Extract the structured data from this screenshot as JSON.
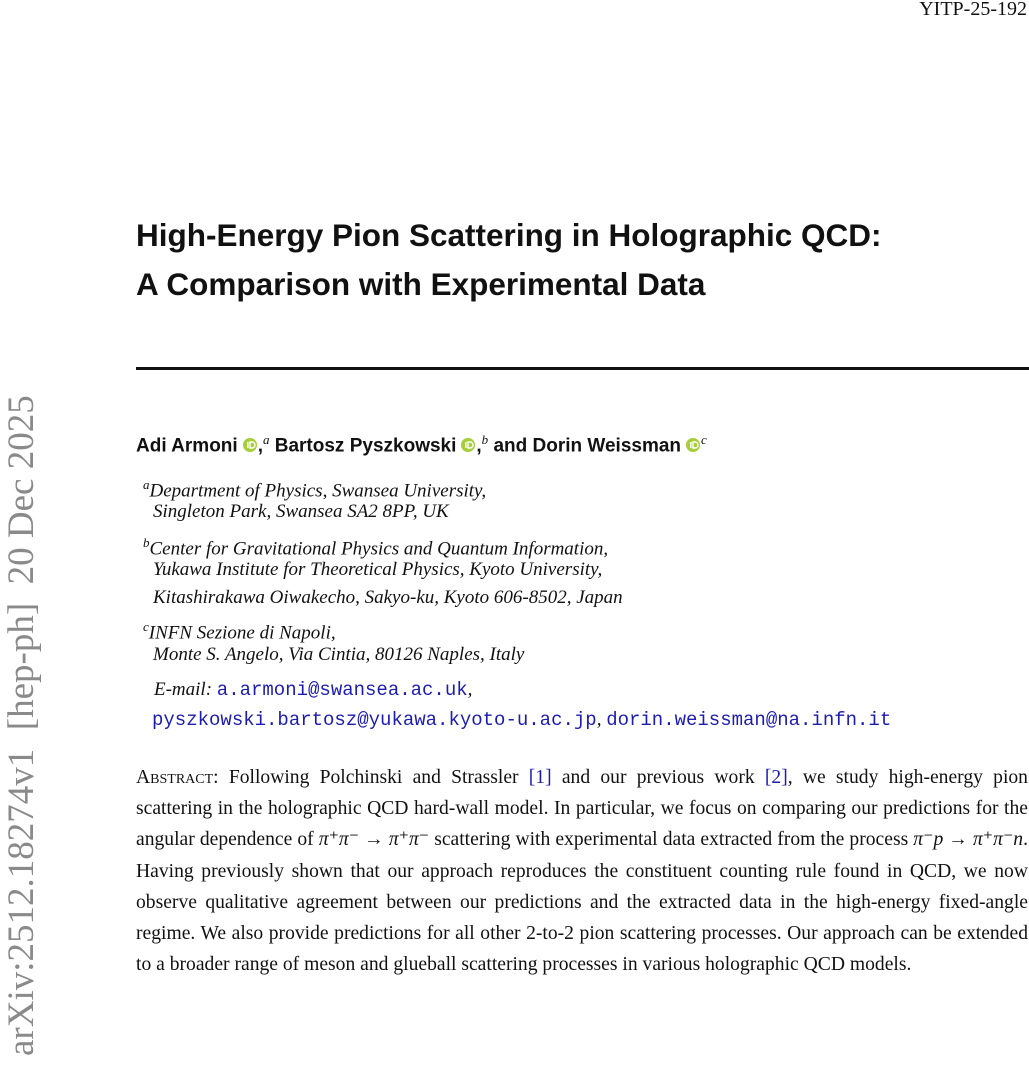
{
  "report_number": "YITP-25-192",
  "arxiv_id": "arXiv:2512.18274v1  [hep-ph]  20 Dec 2025",
  "title": [
    "High-Energy Pion Scattering in Holographic QCD:",
    "A Comparison with Experimental Data"
  ],
  "authors": [
    {
      "name": "Adi Armoni",
      "punct": ",",
      "mark": "a"
    },
    {
      "name": "Bartosz Pyszkowski",
      "punct": ",",
      "mark": "b"
    },
    {
      "name": "Dorin Weissman",
      "mark": "c"
    }
  ],
  "author_conjunction": "and",
  "affiliations": [
    {
      "mark": "a",
      "lines": [
        "Department of Physics, Swansea University,",
        "Singleton Park, Swansea SA2 8PP, UK"
      ]
    },
    {
      "mark": "b",
      "lines": [
        "Center for Gravitational Physics and Quantum Information,",
        "Yukawa Institute for Theoretical Physics, Kyoto University,",
        "Kitashirakawa Oiwakecho, Sakyo-ku, Kyoto 606-8502, Japan"
      ]
    },
    {
      "mark": "c",
      "lines": [
        "INFN Sezione di Napoli,",
        "Monte S. Angelo, Via Cintia, 80126 Naples, Italy"
      ]
    }
  ],
  "email": {
    "label": "E-mail:",
    "separator": ",",
    "addresses": [
      "a.armoni@swansea.ac.uk",
      "pyszkowski.bartosz@yukawa.kyoto-u.ac.jp",
      "dorin.weissman@na.infn.it"
    ]
  },
  "abstract": {
    "label": "Abstract:",
    "segments": [
      {
        "text": "Following Polchinski and Strassler ",
        "style": "plain"
      },
      {
        "text": "[1]",
        "style": "cite"
      },
      {
        "text": " and our previous work ",
        "style": "plain"
      },
      {
        "text": "[2]",
        "style": "cite"
      },
      {
        "text": ", we study high-energy pion scattering in the holographic QCD hard-wall model. In particular, we focus on comparing our predictions for the angular dependence of ",
        "style": "plain"
      },
      {
        "text": "π⁺π⁻ → π⁺π⁻",
        "style": "math"
      },
      {
        "text": " scattering with experimental data extracted from the process ",
        "style": "plain"
      },
      {
        "text": "π⁻p → π⁺π⁻n",
        "style": "math"
      },
      {
        "text": ". Having previously shown that our approach reproduces the constituent counting rule found in QCD, we now observe qualitative agreement between our predictions and the extracted data in the high-energy fixed-angle regime. We also provide predictions for all other 2-to-2 pion scattering processes. Our approach can be extended to a broader range of meson and glueball scattering processes in various holographic QCD models.",
        "style": "plain"
      }
    ]
  }
}
